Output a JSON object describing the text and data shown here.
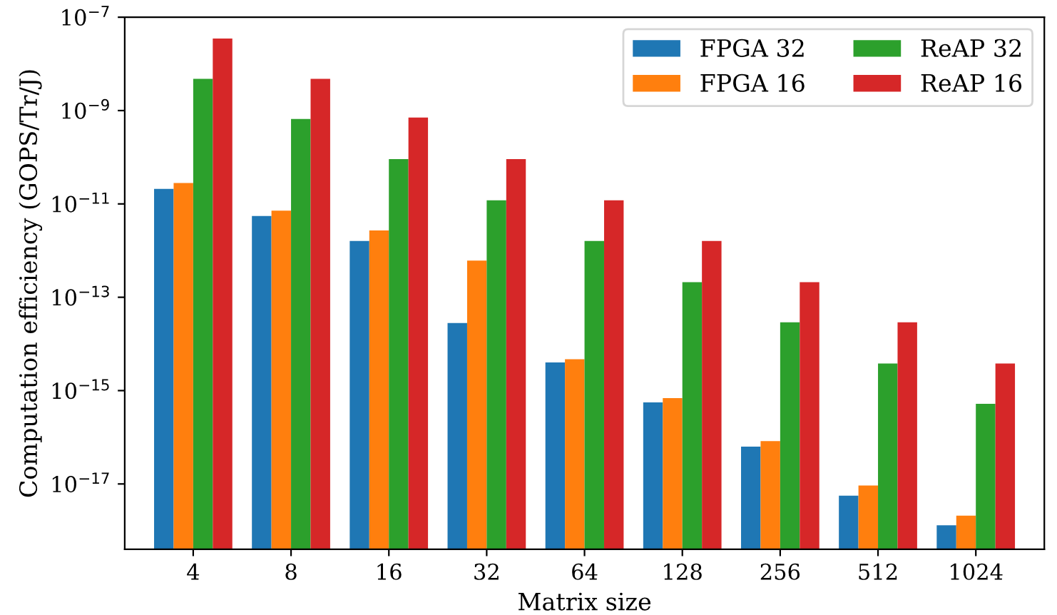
{
  "chart_data": {
    "type": "bar",
    "xlabel": "Matrix size",
    "ylabel": "Computation efficiency (GOPS/Tr/J)",
    "categories": [
      "4",
      "8",
      "16",
      "32",
      "64",
      "128",
      "256",
      "512",
      "1024"
    ],
    "series": [
      {
        "name": "FPGA 32",
        "color": "#1f77b4",
        "values": [
          2.1e-11,
          5.5e-12,
          1.6e-12,
          2.8e-14,
          4e-15,
          5.6e-16,
          6.3e-17,
          5.6e-18,
          1.3e-18
        ]
      },
      {
        "name": "FPGA 16",
        "color": "#ff7f0e",
        "values": [
          2.8e-11,
          7.2e-12,
          2.7e-12,
          6.1e-13,
          4.7e-15,
          6.9e-16,
          8.3e-17,
          9.3e-18,
          2.1e-18
        ]
      },
      {
        "name": "ReAP 32",
        "color": "#2ca02c",
        "values": [
          4.8e-09,
          6.6e-10,
          9.1e-11,
          1.2e-11,
          1.6e-12,
          2.1e-13,
          2.9e-14,
          3.8e-15,
          5.2e-16
        ]
      },
      {
        "name": "ReAP 16",
        "color": "#d62728",
        "values": [
          3.5e-08,
          4.8e-09,
          7.1e-10,
          9.1e-11,
          1.2e-11,
          1.6e-12,
          2.1e-13,
          2.9e-14,
          3.8e-15
        ]
      }
    ],
    "log": "y",
    "ylim": [
      4e-19,
      1e-07
    ],
    "yticks": [
      {
        "value": 1e-17,
        "label": "10$^{−17}$"
      },
      {
        "value": 1e-15,
        "label": "10$^{−15}$"
      },
      {
        "value": 1e-13,
        "label": "10$^{−13}$"
      },
      {
        "value": 1e-11,
        "label": "10$^{−11}$"
      },
      {
        "value": 1e-09,
        "label": "10$^{−9}$"
      },
      {
        "value": 1e-07,
        "label": "10$^{−7}$"
      }
    ],
    "grid": false,
    "legend": "top right"
  }
}
